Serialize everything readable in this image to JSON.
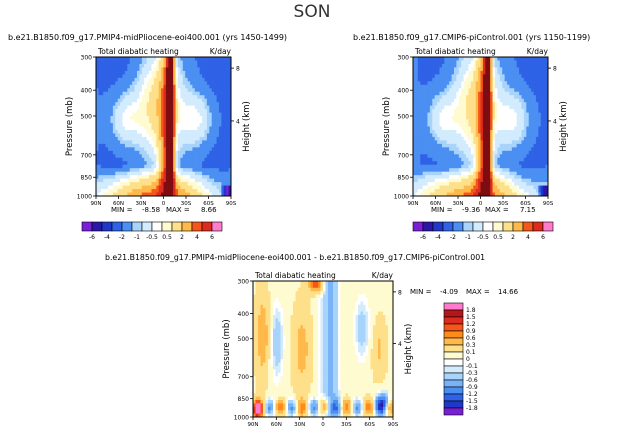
{
  "page": {
    "title": "SON"
  },
  "colors": {
    "scale": [
      "#7a1fd6",
      "#2c16a8",
      "#1f38c8",
      "#2f62e6",
      "#4b8ff2",
      "#79b3f7",
      "#a8d3fa",
      "#d2ebfd",
      "#ffffff",
      "#fffbd0",
      "#ffe08a",
      "#ffb94a",
      "#ff8c1a",
      "#f5561a",
      "#dd2b1f",
      "#b4161a",
      "#7d0d10",
      "#ff7ccc"
    ]
  },
  "chart_data": [
    {
      "type": "heatmap",
      "id": "p1",
      "title": "b.e21.B1850.f09_g17.PMIP4-midPliocene-eoi400.001 (yrs 1450-1499)",
      "subtitle_left": "Total diabatic heating",
      "subtitle_right": "K/day",
      "ylabel": "Pressure (mb)",
      "ylabel_right": "Height (km)",
      "x_ticks": [
        "90N",
        "60N",
        "30N",
        "0",
        "30S",
        "60S",
        "90S"
      ],
      "y_ticks": [
        "300",
        "400",
        "500",
        "700",
        "850",
        "1000"
      ],
      "right_ticks": [
        "8",
        "4"
      ],
      "stats": {
        "min_label": "MIN =",
        "min": "-8.58",
        "max_label": "MAX =",
        "max": "8.66"
      },
      "colorbar_labels": [
        "-6",
        "-4",
        "-2",
        "-1",
        "-0.5",
        "0.5",
        "2",
        "4",
        "6"
      ]
    },
    {
      "type": "heatmap",
      "id": "p2",
      "title": "b.e21.B1850.f09_g17.CMIP6-piControl.001 (yrs 1150-1199)",
      "subtitle_left": "Total diabatic heating",
      "subtitle_right": "K/day",
      "ylabel": "Pressure (mb)",
      "ylabel_right": "Height (km)",
      "x_ticks": [
        "90N",
        "60N",
        "30N",
        "0",
        "30S",
        "60S",
        "90S"
      ],
      "y_ticks": [
        "300",
        "400",
        "500",
        "700",
        "850",
        "1000"
      ],
      "right_ticks": [
        "8",
        "4"
      ],
      "stats": {
        "min_label": "MIN =",
        "min": "-9.36",
        "max_label": "MAX =",
        "max": "7.15"
      },
      "colorbar_labels": [
        "-6",
        "-4",
        "-2",
        "-1",
        "-0.5",
        "0.5",
        "2",
        "4",
        "6"
      ]
    },
    {
      "type": "heatmap",
      "id": "p3",
      "title": "b.e21.B1850.f09_g17.PMIP4-midPliocene-eoi400.001 - b.e21.B1850.f09_g17.CMIP6-piControl.001",
      "subtitle_left": "Total diabatic heating",
      "subtitle_right": "K/day",
      "ylabel": "Pressure (mb)",
      "ylabel_right": "Height (km)",
      "x_ticks": [
        "90N",
        "60N",
        "30N",
        "0",
        "30S",
        "60S",
        "90S"
      ],
      "y_ticks": [
        "300",
        "400",
        "500",
        "700",
        "850",
        "1000"
      ],
      "right_ticks": [
        "8",
        "4"
      ],
      "stats": {
        "min_label": "MIN =",
        "min": "-4.09",
        "max_label": "MAX =",
        "max": "14.66"
      },
      "colorbar_labels": [
        "1.8",
        "1.5",
        "1.2",
        "0.9",
        "0.6",
        "0.3",
        "0.1",
        "0",
        "-0.1",
        "-0.3",
        "-0.6",
        "-0.9",
        "-1.2",
        "-1.5",
        "-1.8"
      ]
    }
  ]
}
